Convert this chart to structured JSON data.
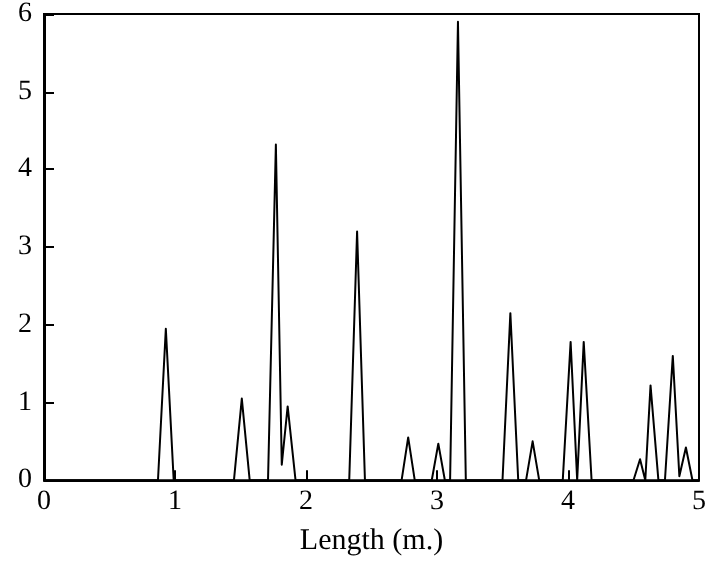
{
  "chart_data": {
    "type": "line",
    "xlabel": "Length (m.)",
    "xlim": [
      0,
      5
    ],
    "xticks": [
      0,
      1,
      2,
      3,
      4,
      5
    ],
    "ylim": [
      0,
      6
    ],
    "yticks": [
      0,
      1,
      2,
      3,
      4,
      5,
      6
    ],
    "grid": false,
    "marker": "none",
    "line_style": "solid",
    "series": [
      {
        "color": "#000000",
        "x": [
          0,
          0.87,
          0.93,
          0.99,
          1.45,
          1.51,
          1.57,
          1.71,
          1.77,
          1.815,
          1.86,
          1.92,
          2.33,
          2.39,
          2.45,
          2.73,
          2.78,
          2.83,
          2.96,
          3.01,
          3.06,
          3.1,
          3.16,
          3.22,
          3.5,
          3.56,
          3.62,
          3.68,
          3.73,
          3.78,
          3.96,
          4.02,
          4.07,
          4.12,
          4.18,
          4.5,
          4.55,
          4.59,
          4.63,
          4.69,
          4.74,
          4.8,
          4.85,
          4.9,
          4.95,
          5
        ],
        "values": [
          0,
          0,
          1.95,
          0,
          0,
          1.05,
          0,
          0,
          4.32,
          0.2,
          0.95,
          0,
          0,
          3.2,
          0,
          0,
          0.55,
          0,
          0,
          0.47,
          0,
          0,
          5.9,
          0,
          0,
          2.15,
          0,
          0,
          0.5,
          0,
          0,
          1.78,
          0,
          1.78,
          0,
          0,
          0.27,
          0,
          1.22,
          0,
          0,
          1.6,
          0.05,
          0.42,
          0,
          0
        ]
      }
    ]
  }
}
